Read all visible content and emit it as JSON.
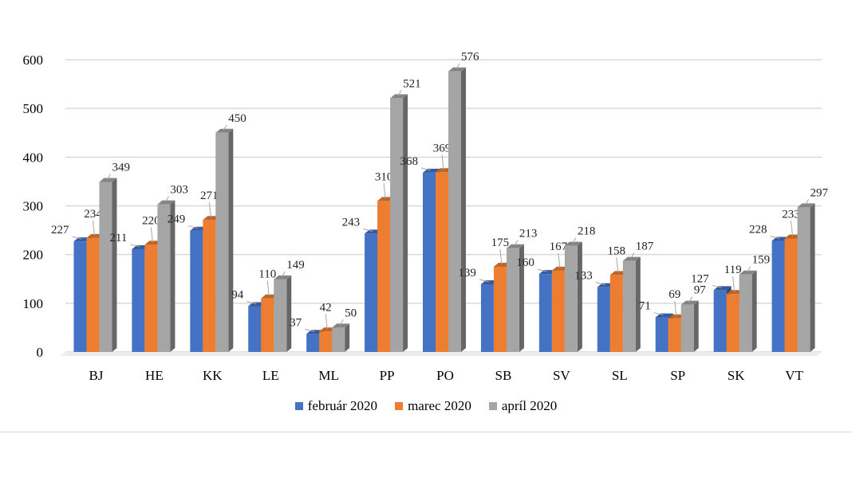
{
  "chart_data": {
    "type": "bar",
    "categories": [
      "BJ",
      "HE",
      "KK",
      "LE",
      "ML",
      "PP",
      "PO",
      "SB",
      "SV",
      "SL",
      "SP",
      "SK",
      "VT"
    ],
    "series": [
      {
        "name": "február 2020",
        "color": "#4472c4",
        "values": [
          227,
          211,
          249,
          94,
          37,
          243,
          368,
          139,
          160,
          133,
          71,
          127,
          228
        ]
      },
      {
        "name": "marec 2020",
        "color": "#ed7d31",
        "values": [
          234,
          220,
          271,
          110,
          42,
          310,
          369,
          175,
          167,
          158,
          69,
          119,
          233
        ]
      },
      {
        "name": "apríl 2020",
        "color": "#a5a5a5",
        "values": [
          349,
          303,
          450,
          149,
          50,
          521,
          576,
          213,
          218,
          187,
          97,
          159,
          297
        ]
      }
    ],
    "ylim": [
      0,
      600
    ],
    "yticks": [
      0,
      100,
      200,
      300,
      400,
      500,
      600
    ],
    "grid": true,
    "legend_position": "bottom",
    "style": "3d-clustered-column"
  }
}
